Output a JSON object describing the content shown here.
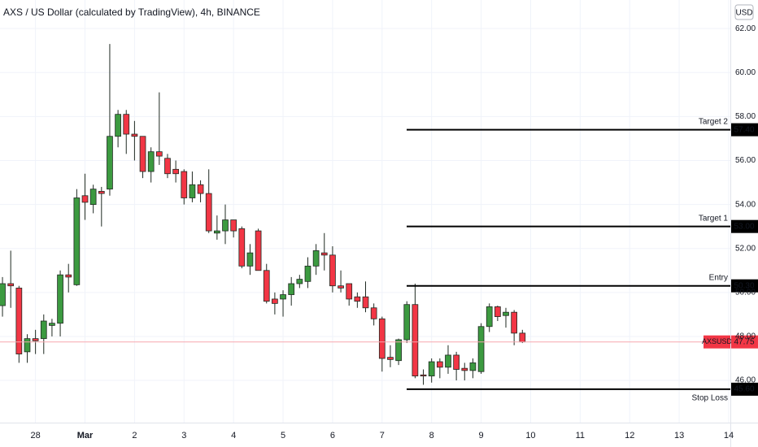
{
  "chart_data": {
    "type": "candlestick",
    "title": "AXS / US Dollar (calculated by TradingView), 4h, BINANCE",
    "currency": "USD",
    "x": [
      0,
      1,
      2,
      3,
      4,
      5,
      6,
      7,
      8,
      9,
      10,
      11,
      12,
      13,
      14,
      15,
      16,
      17,
      18,
      19,
      20,
      21,
      22,
      23,
      24,
      25,
      26,
      27,
      28,
      29,
      30,
      31,
      32,
      33,
      34,
      35,
      36,
      37,
      38,
      39,
      40,
      41,
      42,
      43,
      44,
      45,
      46,
      47,
      48,
      49,
      50,
      51,
      52,
      53,
      54,
      55,
      56,
      57,
      58,
      59,
      60,
      61,
      62,
      63
    ],
    "open": [
      49.4,
      50.4,
      50.2,
      47.3,
      47.9,
      47.9,
      48.5,
      48.6,
      50.8,
      50.35,
      54.4,
      54.0,
      54.6,
      54.7,
      57.1,
      58.1,
      57.2,
      57.1,
      55.5,
      56.4,
      56.1,
      55.6,
      55.5,
      54.3,
      54.9,
      54.5,
      52.7,
      52.8,
      53.3,
      52.9,
      51.2,
      52.8,
      51.0,
      49.7,
      49.7,
      49.9,
      50.4,
      50.5,
      51.2,
      51.8,
      51.7,
      50.3,
      50.4,
      49.8,
      49.8,
      49.3,
      48.8,
      47.05,
      46.9,
      47.85,
      49.45,
      46.25,
      46.2,
      46.85,
      46.6,
      47.15,
      46.55,
      46.45,
      46.4,
      48.45,
      49.35,
      48.95,
      49.1,
      48.15
    ],
    "high": [
      50.7,
      51.9,
      50.3,
      48.1,
      48.3,
      49.0,
      48.8,
      51.0,
      51.3,
      54.7,
      55.4,
      54.9,
      54.8,
      61.3,
      58.3,
      58.3,
      57.8,
      57.1,
      56.6,
      59.1,
      56.3,
      56.0,
      55.6,
      55.5,
      55.1,
      55.6,
      53.5,
      54.0,
      53.3,
      53.0,
      52.2,
      52.9,
      51.3,
      50.0,
      50.1,
      50.7,
      50.8,
      51.6,
      52.2,
      52.7,
      52.1,
      51.0,
      50.4,
      50.0,
      50.5,
      49.5,
      48.9,
      47.6,
      47.9,
      49.6,
      50.4,
      46.5,
      47.0,
      47.0,
      47.6,
      47.3,
      46.8,
      47.0,
      48.6,
      49.5,
      49.4,
      49.3,
      49.2,
      48.3
    ],
    "low": [
      48.9,
      49.3,
      46.8,
      46.8,
      47.2,
      47.2,
      48.0,
      48.0,
      50.0,
      50.3,
      53.3,
      53.6,
      53.0,
      54.4,
      56.6,
      56.3,
      56.0,
      55.2,
      55.0,
      55.8,
      55.2,
      55.0,
      54.0,
      54.1,
      54.1,
      52.7,
      52.4,
      52.2,
      52.5,
      51.1,
      50.8,
      51.0,
      49.5,
      49.0,
      48.9,
      49.4,
      50.2,
      50.2,
      50.8,
      51.0,
      50.0,
      50.0,
      49.4,
      49.3,
      49.1,
      48.5,
      46.4,
      46.6,
      46.7,
      47.7,
      46.1,
      45.8,
      45.9,
      46.1,
      46.3,
      46.0,
      46.0,
      46.1,
      46.3,
      48.2,
      48.7,
      48.4,
      47.6,
      47.7
    ],
    "close": [
      50.4,
      50.3,
      47.2,
      47.9,
      47.8,
      48.7,
      48.6,
      50.8,
      50.7,
      54.3,
      54.1,
      54.7,
      54.5,
      57.1,
      58.1,
      57.2,
      57.1,
      55.5,
      56.4,
      56.2,
      55.4,
      55.4,
      54.3,
      54.9,
      54.5,
      52.8,
      52.8,
      53.3,
      52.8,
      51.2,
      51.8,
      51.0,
      49.6,
      49.5,
      49.9,
      50.4,
      50.6,
      51.2,
      51.9,
      51.7,
      50.3,
      50.2,
      49.7,
      49.6,
      49.3,
      48.8,
      47.0,
      46.95,
      47.85,
      49.45,
      46.2,
      46.2,
      46.85,
      46.6,
      47.15,
      46.5,
      46.45,
      46.8,
      48.45,
      49.35,
      48.9,
      49.1,
      48.15,
      47.75
    ],
    "up_color": "#3c9a40",
    "down_color": "#f23645",
    "xlim": [
      -0.3,
      88.2
    ],
    "xticks": [
      {
        "value": 4,
        "label": "28"
      },
      {
        "value": 10,
        "label": "Mar"
      },
      {
        "value": 16,
        "label": "2"
      },
      {
        "value": 22,
        "label": "3"
      },
      {
        "value": 28,
        "label": "4"
      },
      {
        "value": 34,
        "label": "5"
      },
      {
        "value": 40,
        "label": "6"
      },
      {
        "value": 46,
        "label": "7"
      },
      {
        "value": 52,
        "label": "8"
      },
      {
        "value": 58,
        "label": "9"
      },
      {
        "value": 64,
        "label": "10"
      },
      {
        "value": 70,
        "label": "11"
      },
      {
        "value": 76,
        "label": "12"
      },
      {
        "value": 82,
        "label": "13"
      },
      {
        "value": 88,
        "label": "14"
      }
    ],
    "ylim": [
      44.08,
      63.3
    ],
    "yticks": [
      {
        "value": 46,
        "label": "46.00"
      },
      {
        "value": 48,
        "label": "48.00"
      },
      {
        "value": 50,
        "label": "50.00"
      },
      {
        "value": 52,
        "label": "52.00"
      },
      {
        "value": 54,
        "label": "54.00"
      },
      {
        "value": 56,
        "label": "56.00"
      },
      {
        "value": 58,
        "label": "58.00"
      },
      {
        "value": 60,
        "label": "60.00"
      },
      {
        "value": 62,
        "label": "62.00"
      }
    ],
    "grid": true,
    "levels": [
      {
        "name": "Target 2",
        "value": 57.4,
        "label": "57.40"
      },
      {
        "name": "Target 1",
        "value": 53.0,
        "label": "53.00"
      },
      {
        "name": "Entry",
        "value": 50.3,
        "label": "50.30"
      },
      {
        "name": "Stop Loss",
        "value": 45.6,
        "label": "45.60"
      }
    ],
    "last_price": {
      "symbol": "AXSUSD",
      "value": 47.75,
      "label": "47.75"
    }
  }
}
